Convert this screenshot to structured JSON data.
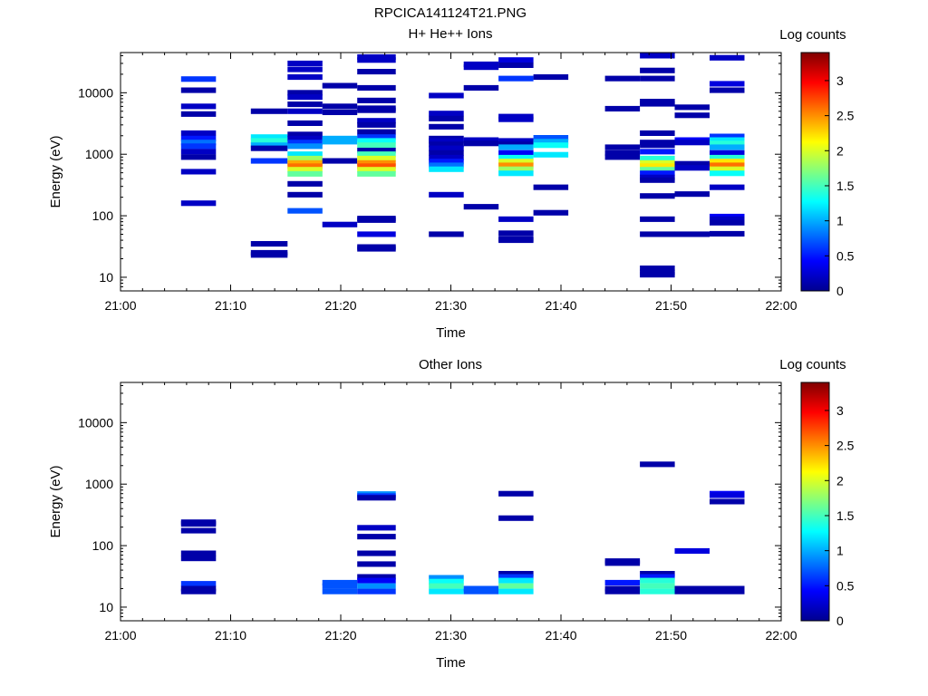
{
  "figure": {
    "title": "RPCICA141124T21.PNG"
  },
  "colorscale": {
    "stops": [
      "#00008f",
      "#0000ff",
      "#0080ff",
      "#00ffff",
      "#80ff80",
      "#ffff00",
      "#ff8000",
      "#ff0000",
      "#800000"
    ],
    "min": 0,
    "max": 3.4
  },
  "chart_data": [
    {
      "type": "heatmap",
      "title": "H+ He++ Ions",
      "xlabel": "Time",
      "ylabel": "Energy (eV)",
      "colorbar_label": "Log counts",
      "x_range": [
        "21:00",
        "22:00"
      ],
      "x_ticks": [
        "21:00",
        "21:10",
        "21:20",
        "21:30",
        "21:40",
        "21:50",
        "22:00"
      ],
      "y_scale": "log",
      "y_range": [
        6,
        45000
      ],
      "y_ticks": [
        "10",
        "100",
        "1000",
        "10000"
      ],
      "colorbar_ticks": [
        "0",
        "0.5",
        "1",
        "1.5",
        "2",
        "2.5",
        "3"
      ],
      "columns": [
        {
          "t0": "21:05:30",
          "t1": "21:08:40",
          "bins": [
            [
              16700,
              0.6
            ],
            [
              11000,
              0.1
            ],
            [
              6000,
              0.2
            ],
            [
              4500,
              0.1
            ],
            [
              2200,
              0.2
            ],
            [
              1800,
              0.5
            ],
            [
              1550,
              0.8
            ],
            [
              1350,
              0.6
            ],
            [
              1100,
              0.2
            ],
            [
              900,
              0.1
            ],
            [
              520,
              0.2
            ],
            [
              160,
              0.2
            ]
          ]
        },
        {
          "t0": "21:11:50",
          "t1": "21:15:10",
          "bins": [
            [
              5000,
              0.1
            ],
            [
              1900,
              1.2
            ],
            [
              1650,
              1.4
            ],
            [
              1400,
              1.0
            ],
            [
              1250,
              0.1
            ],
            [
              780,
              0.6
            ],
            [
              35,
              0.1
            ],
            [
              25,
              0.1
            ],
            [
              23,
              0.1
            ]
          ]
        },
        {
          "t0": "21:15:10",
          "t1": "21:18:20",
          "bins": [
            [
              30000,
              0.2
            ],
            [
              24000,
              0.2
            ],
            [
              18000,
              0.2
            ],
            [
              10000,
              0.1
            ],
            [
              8500,
              0.2
            ],
            [
              6500,
              0.1
            ],
            [
              5000,
              0.2
            ],
            [
              3200,
              0.1
            ],
            [
              2100,
              0.1
            ],
            [
              1800,
              0.2
            ],
            [
              1550,
              0.6
            ],
            [
              1350,
              0.9
            ],
            [
              1000,
              1.2
            ],
            [
              850,
              1.8
            ],
            [
              720,
              2.4
            ],
            [
              640,
              2.6
            ],
            [
              560,
              2.0
            ],
            [
              480,
              1.6
            ],
            [
              330,
              0.1
            ],
            [
              220,
              0.1
            ],
            [
              120,
              0.7
            ]
          ]
        },
        {
          "t0": "21:18:20",
          "t1": "21:21:30",
          "bins": [
            [
              13000,
              0.1
            ],
            [
              6000,
              0.1
            ],
            [
              4800,
              0.1
            ],
            [
              1800,
              1.0
            ],
            [
              1600,
              1.0
            ],
            [
              780,
              0.1
            ],
            [
              72,
              0.2
            ]
          ]
        },
        {
          "t0": "21:21:30",
          "t1": "21:25:00",
          "bins": [
            [
              38000,
              0.2
            ],
            [
              34000,
              0.2
            ],
            [
              22000,
              0.1
            ],
            [
              12000,
              0.1
            ],
            [
              7500,
              0.1
            ],
            [
              5600,
              0.1
            ],
            [
              5200,
              0.1
            ],
            [
              3500,
              0.2
            ],
            [
              3000,
              0.1
            ],
            [
              2300,
              0.1
            ],
            [
              1900,
              0.6
            ],
            [
              1650,
              1.3
            ],
            [
              1400,
              1.5
            ],
            [
              1150,
              0.1
            ],
            [
              1000,
              1.5
            ],
            [
              850,
              2.0
            ],
            [
              720,
              2.5
            ],
            [
              640,
              2.7
            ],
            [
              560,
              2.0
            ],
            [
              480,
              1.6
            ],
            [
              90,
              0.1
            ],
            [
              85,
              0.1
            ],
            [
              50,
              0.3
            ],
            [
              31,
              0.1
            ],
            [
              29,
              0.1
            ]
          ]
        },
        {
          "t0": "21:28:00",
          "t1": "21:31:10",
          "bins": [
            [
              9000,
              0.2
            ],
            [
              4600,
              0.2
            ],
            [
              3800,
              0.1
            ],
            [
              2800,
              0.1
            ],
            [
              1800,
              0.1
            ],
            [
              1650,
              0.2
            ],
            [
              1450,
              0.1
            ],
            [
              1250,
              0.2
            ],
            [
              1050,
              0.1
            ],
            [
              880,
              0.2
            ],
            [
              760,
              0.5
            ],
            [
              660,
              0.8
            ],
            [
              570,
              1.2
            ],
            [
              220,
              0.2
            ],
            [
              50,
              0.1
            ]
          ]
        },
        {
          "t0": "21:31:10",
          "t1": "21:34:20",
          "bins": [
            [
              29000,
              0.2
            ],
            [
              26000,
              0.2
            ],
            [
              12000,
              0.1
            ],
            [
              1700,
              0.2
            ],
            [
              1500,
              0.1
            ],
            [
              140,
              0.1
            ]
          ]
        },
        {
          "t0": "21:34:20",
          "t1": "21:37:30",
          "bins": [
            [
              34000,
              0.3
            ],
            [
              28000,
              0.1
            ],
            [
              17000,
              0.6
            ],
            [
              4100,
              0.2
            ],
            [
              3700,
              0.2
            ],
            [
              1650,
              0.2
            ],
            [
              1450,
              0.1
            ],
            [
              1300,
              1.0
            ],
            [
              1050,
              0.4
            ],
            [
              880,
              1.3
            ],
            [
              760,
              2.0
            ],
            [
              660,
              2.5
            ],
            [
              570,
              1.8
            ],
            [
              490,
              1.2
            ],
            [
              88,
              0.2
            ],
            [
              52,
              0.1
            ],
            [
              42,
              0.1
            ],
            [
              40,
              0.1
            ]
          ]
        },
        {
          "t0": "21:37:30",
          "t1": "21:40:40",
          "bins": [
            [
              18000,
              0.1
            ],
            [
              1850,
              0.7
            ],
            [
              1600,
              1.0
            ],
            [
              1400,
              1.3
            ],
            [
              980,
              1.2
            ],
            [
              290,
              0.1
            ],
            [
              112,
              0.1
            ]
          ]
        },
        {
          "t0": "21:44:00",
          "t1": "21:47:10",
          "bins": [
            [
              17000,
              0.1
            ],
            [
              5500,
              0.1
            ],
            [
              1300,
              0.1
            ],
            [
              1050,
              0.1
            ],
            [
              900,
              0.1
            ]
          ]
        },
        {
          "t0": "21:47:10",
          "t1": "21:50:20",
          "bins": [
            [
              40000,
              0.2
            ],
            [
              23000,
              0.1
            ],
            [
              17000,
              0.1
            ],
            [
              7200,
              0.1
            ],
            [
              6600,
              0.1
            ],
            [
              2200,
              0.1
            ],
            [
              1550,
              0.1
            ],
            [
              1400,
              0.1
            ],
            [
              1100,
              0.5
            ],
            [
              850,
              1.4
            ],
            [
              720,
              2.0
            ],
            [
              640,
              2.2
            ],
            [
              560,
              1.6
            ],
            [
              490,
              0.5
            ],
            [
              420,
              0.2
            ],
            [
              380,
              0.1
            ],
            [
              210,
              0.1
            ],
            [
              88,
              0.1
            ],
            [
              50,
              0.1
            ],
            [
              14,
              0.1
            ],
            [
              12,
              0.1
            ],
            [
              11,
              0.1
            ]
          ]
        },
        {
          "t0": "21:50:20",
          "t1": "21:53:30",
          "bins": [
            [
              5800,
              0.1
            ],
            [
              4300,
              0.1
            ],
            [
              1700,
              0.4
            ],
            [
              1550,
              0.2
            ],
            [
              700,
              0.1
            ],
            [
              600,
              0.2
            ],
            [
              225,
              0.1
            ],
            [
              50,
              0.1
            ]
          ]
        },
        {
          "t0": "21:53:30",
          "t1": "21:56:40",
          "bins": [
            [
              37000,
              0.2
            ],
            [
              14000,
              0.3
            ],
            [
              11000,
              0.1
            ],
            [
              1950,
              0.6
            ],
            [
              1700,
              1.2
            ],
            [
              1500,
              1.4
            ],
            [
              1300,
              1.0
            ],
            [
              1050,
              0.3
            ],
            [
              880,
              1.4
            ],
            [
              760,
              2.2
            ],
            [
              660,
              2.6
            ],
            [
              570,
              2.0
            ],
            [
              490,
              1.3
            ],
            [
              290,
              0.2
            ],
            [
              97,
              0.4
            ],
            [
              88,
              0.2
            ],
            [
              77,
              0.1
            ],
            [
              51,
              0.1
            ]
          ]
        }
      ]
    },
    {
      "type": "heatmap",
      "title": "Other Ions",
      "xlabel": "Time",
      "ylabel": "Energy (eV)",
      "colorbar_label": "Log counts",
      "x_range": [
        "21:00",
        "22:00"
      ],
      "x_ticks": [
        "21:00",
        "21:10",
        "21:20",
        "21:30",
        "21:40",
        "21:50",
        "22:00"
      ],
      "y_scale": "log",
      "y_range": [
        6,
        45000
      ],
      "y_ticks": [
        "10",
        "100",
        "1000",
        "10000"
      ],
      "colorbar_ticks": [
        "0",
        "0.5",
        "1",
        "1.5",
        "2",
        "2.5",
        "3"
      ],
      "columns": [
        {
          "t0": "21:05:30",
          "t1": "21:08:40",
          "bins": [
            [
              240,
              0.1
            ],
            [
              225,
              0.1
            ],
            [
              175,
              0.1
            ],
            [
              75,
              0.1
            ],
            [
              62,
              0.1
            ],
            [
              24,
              0.6
            ],
            [
              20,
              0.1
            ],
            [
              18,
              0.1
            ]
          ]
        },
        {
          "t0": "21:18:20",
          "t1": "21:21:30",
          "bins": [
            [
              25,
              0.7
            ],
            [
              22,
              0.7
            ],
            [
              18,
              0.7
            ]
          ]
        },
        {
          "t0": "21:21:30",
          "t1": "21:25:00",
          "bins": [
            [
              690,
              0.9
            ],
            [
              640,
              0.6
            ],
            [
              600,
              0.1
            ],
            [
              195,
              0.2
            ],
            [
              140,
              0.1
            ],
            [
              75,
              0.1
            ],
            [
              50,
              0.1
            ],
            [
              31,
              0.1
            ],
            [
              27,
              0.4
            ],
            [
              22,
              0.9
            ],
            [
              18,
              0.6
            ]
          ]
        },
        {
          "t0": "21:28:00",
          "t1": "21:31:10",
          "bins": [
            [
              30,
              0.9
            ],
            [
              26,
              1.3
            ],
            [
              22,
              1.5
            ],
            [
              18,
              1.2
            ]
          ]
        },
        {
          "t0": "21:31:10",
          "t1": "21:34:20",
          "bins": [
            [
              20,
              0.7
            ],
            [
              18,
              0.7
            ]
          ]
        },
        {
          "t0": "21:34:20",
          "t1": "21:37:30",
          "bins": [
            [
              700,
              0.1
            ],
            [
              280,
              0.1
            ],
            [
              35,
              0.1
            ],
            [
              31,
              0.6
            ],
            [
              27,
              1.2
            ],
            [
              22,
              1.6
            ],
            [
              18,
              1.2
            ]
          ]
        },
        {
          "t0": "21:44:00",
          "t1": "21:47:10",
          "bins": [
            [
              56,
              0.1
            ],
            [
              52,
              0.1
            ],
            [
              25,
              0.5
            ],
            [
              20,
              0.1
            ],
            [
              18,
              0.1
            ]
          ]
        },
        {
          "t0": "21:47:10",
          "t1": "21:50:20",
          "bins": [
            [
              2100,
              0.1
            ],
            [
              35,
              0.1
            ],
            [
              31,
              0.5
            ],
            [
              27,
              1.4
            ],
            [
              22,
              1.5
            ],
            [
              18,
              1.4
            ]
          ]
        },
        {
          "t0": "21:50:20",
          "t1": "21:53:30",
          "bins": [
            [
              82,
              0.3
            ],
            [
              20,
              0.1
            ],
            [
              18,
              0.1
            ]
          ]
        },
        {
          "t0": "21:53:30",
          "t1": "21:56:40",
          "bins": [
            [
              700,
              0.4
            ],
            [
              660,
              0.3
            ],
            [
              520,
              0.1
            ],
            [
              20,
              0.1
            ],
            [
              18,
              0.1
            ]
          ]
        }
      ]
    }
  ]
}
